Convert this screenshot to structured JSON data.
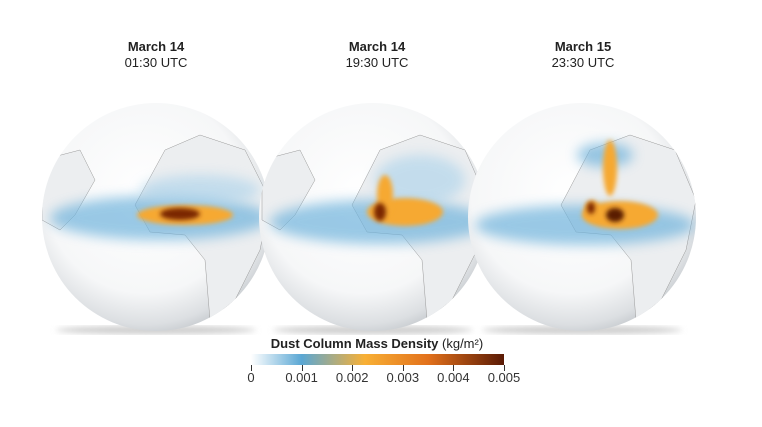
{
  "panels": [
    {
      "date": "March 14",
      "time": "01:30 UTC"
    },
    {
      "date": "March 14",
      "time": "19:30 UTC"
    },
    {
      "date": "March 15",
      "time": "23:30 UTC"
    }
  ],
  "legend": {
    "title": "Dust Column Mass Density",
    "unit": "(kg/m²)",
    "ticks": [
      "0",
      "0.001",
      "0.002",
      "0.003",
      "0.004",
      "0.005"
    ],
    "range": [
      0,
      0.005
    ],
    "colors": [
      "#ffffff",
      "#5aa7d4",
      "#f8b035",
      "#e2711c",
      "#5a1a05"
    ]
  }
}
